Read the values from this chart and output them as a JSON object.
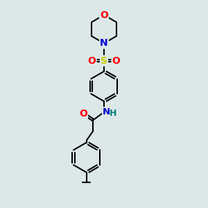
{
  "bg_color": "#dce8e8",
  "atom_colors": {
    "C": "#000000",
    "N": "#0000cc",
    "O": "#ff0000",
    "S": "#cccc00",
    "H": "#008080"
  },
  "bond_color": "#000000",
  "bond_width": 1.5,
  "dbo": 0.06,
  "figsize": [
    3.0,
    3.0
  ],
  "dpi": 100
}
